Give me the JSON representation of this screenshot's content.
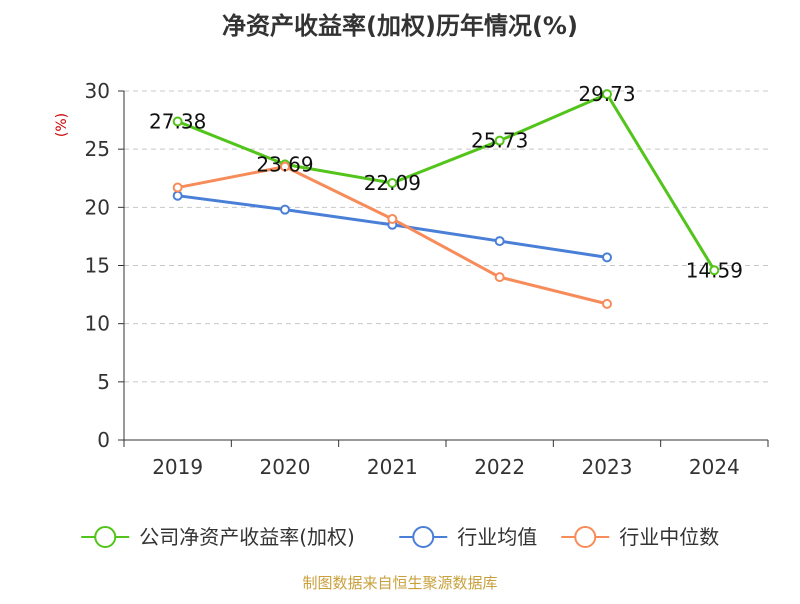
{
  "chart_data": {
    "type": "line",
    "title": "净资产收益率(加权)历年情况(%)",
    "ylabel": "(%)",
    "xlabel": "",
    "categories": [
      "2019",
      "2020",
      "2021",
      "2022",
      "2023",
      "2024"
    ],
    "ylim": [
      0,
      30
    ],
    "yticks": [
      0,
      5,
      10,
      15,
      20,
      25,
      30
    ],
    "grid": true,
    "legend_position": "bottom",
    "series": [
      {
        "name": "公司净资产收益率(加权)",
        "color": "#52c41a",
        "values": [
          27.38,
          23.69,
          22.09,
          25.73,
          29.73,
          14.59
        ],
        "labels": [
          "27.38",
          "23.69",
          "22.09",
          "25.73",
          "29.73",
          "14.59"
        ]
      },
      {
        "name": "行业均值",
        "color": "#4a7fd8",
        "values": [
          21.0,
          19.8,
          18.5,
          17.1,
          15.7,
          null
        ]
      },
      {
        "name": "行业中位数",
        "color": "#f78c5a",
        "values": [
          21.7,
          23.5,
          19.0,
          14.0,
          11.7,
          null
        ]
      }
    ],
    "source": "制图数据来自恒生聚源数据库",
    "ylabel_color": "#cc0000",
    "source_color": "#c9a03c"
  }
}
